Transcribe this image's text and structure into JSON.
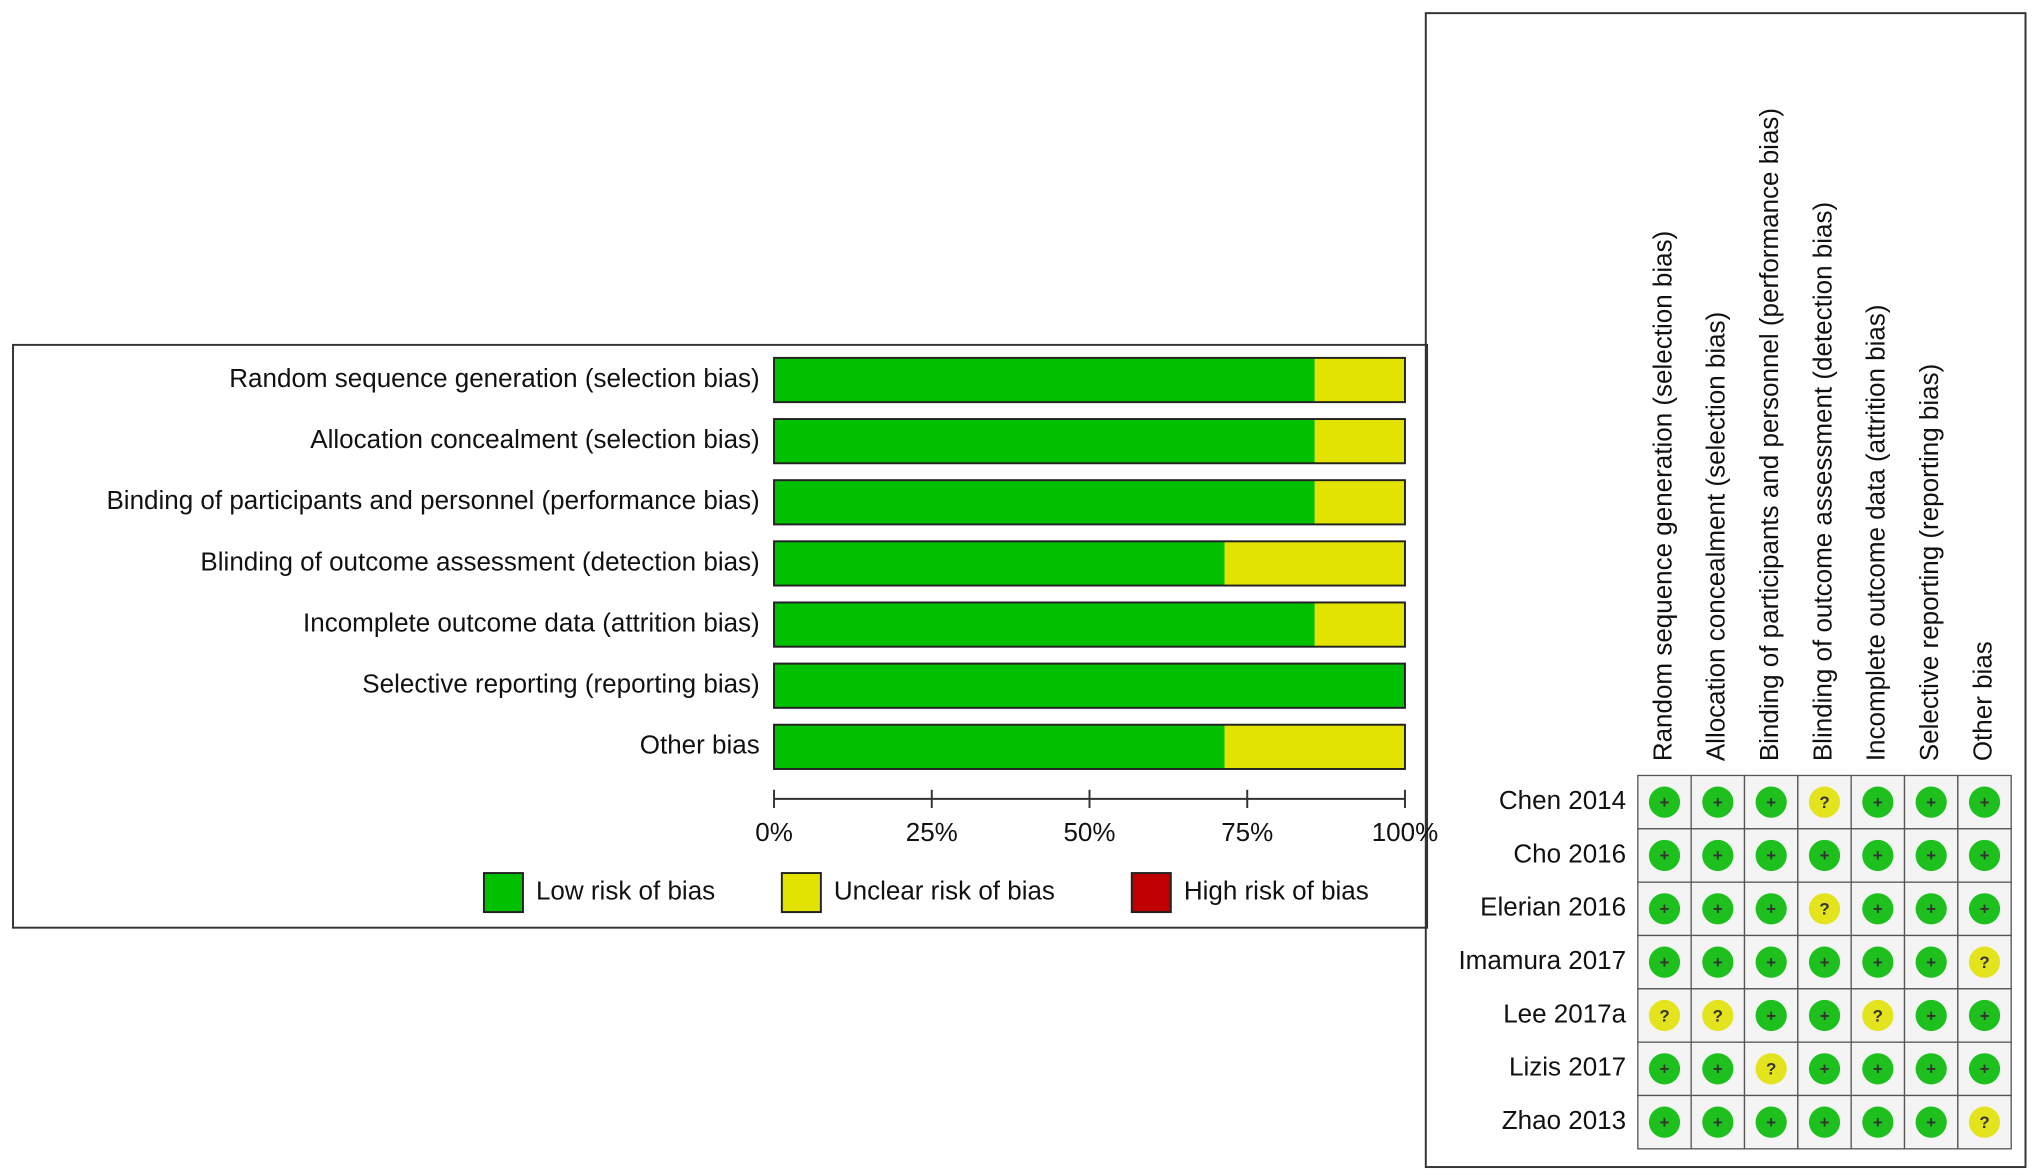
{
  "chart_data": [
    {
      "type": "bar",
      "categories": [
        "Random sequence generation (selection bias)",
        "Allocation concealment (selection bias)",
        "Binding of participants and personnel (performance bias)",
        "Blinding of outcome assessment (detection bias)",
        "Incomplete outcome data (attrition bias)",
        "Selective reporting (reporting bias)",
        "Other bias"
      ],
      "series": [
        {
          "name": "Low risk of bias",
          "color": "#00c000",
          "values": [
            85.7,
            85.7,
            85.7,
            71.4,
            85.7,
            100,
            71.4
          ]
        },
        {
          "name": "Unclear risk of bias",
          "color": "#e3e300",
          "values": [
            14.3,
            14.3,
            14.3,
            28.6,
            14.3,
            0,
            28.6
          ]
        },
        {
          "name": "High risk of bias",
          "color": "#c00000",
          "values": [
            0,
            0,
            0,
            0,
            0,
            0,
            0
          ]
        }
      ],
      "xlim": [
        0,
        100
      ],
      "xticks": [
        {
          "value": 0,
          "label": "0%"
        },
        {
          "value": 25,
          "label": "25%"
        },
        {
          "value": 50,
          "label": "50%"
        },
        {
          "value": 75,
          "label": "75%"
        },
        {
          "value": 100,
          "label": "100%"
        }
      ]
    },
    {
      "type": "grid",
      "columns": [
        "Random sequence generation (selection bias)",
        "Allocation concealment (selection bias)",
        "Binding of participants and personnel (performance bias)",
        "Blinding of outcome assessment (detection bias)",
        "Incomplete outcome data (attrition bias)",
        "Selective reporting (reporting bias)",
        "Other bias"
      ],
      "rows": [
        "Chen 2014",
        "Cho 2016",
        "Elerian 2016",
        "Imamura 2017",
        "Lee 2017a",
        "Lizis 2017",
        "Zhao 2013"
      ],
      "symbols": [
        {
          "symbol": "+",
          "color": "#1ec01e"
        },
        {
          "symbol": "?",
          "color": "#e3e31e"
        }
      ],
      "cells": [
        [
          "+",
          "+",
          "+",
          "?",
          "+",
          "+",
          "+"
        ],
        [
          "+",
          "+",
          "+",
          "+",
          "+",
          "+",
          "+"
        ],
        [
          "+",
          "+",
          "+",
          "?",
          "+",
          "+",
          "+"
        ],
        [
          "+",
          "+",
          "+",
          "+",
          "+",
          "+",
          "?"
        ],
        [
          "?",
          "?",
          "+",
          "+",
          "?",
          "+",
          "+"
        ],
        [
          "+",
          "+",
          "?",
          "+",
          "+",
          "+",
          "+"
        ],
        [
          "+",
          "+",
          "+",
          "+",
          "+",
          "+",
          "?"
        ]
      ]
    }
  ]
}
